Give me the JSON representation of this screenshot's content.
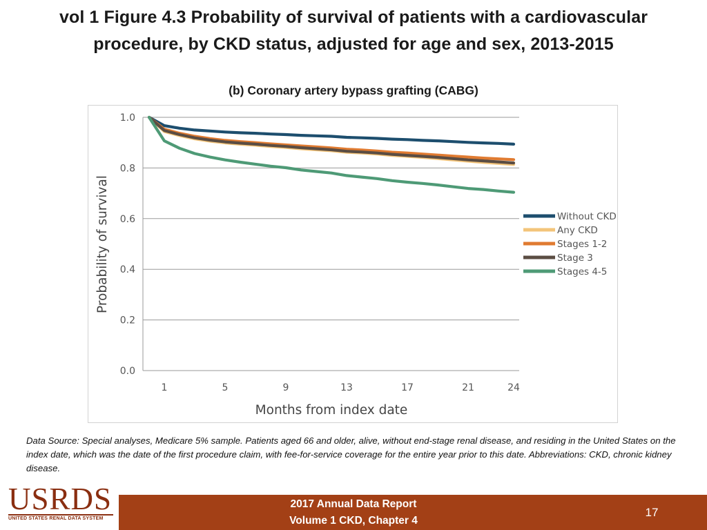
{
  "slide": {
    "title_line1": "vol 1 Figure 4.3 Probability of survival of patients with a cardiovascular",
    "title_line2": "procedure, by CKD status, adjusted for age and sex, 2013-2015",
    "footnote": "Data Source: Special analyses, Medicare 5% sample. Patients aged 66 and older, alive, without end-stage renal disease, and residing in the United States on the index date, which was the date of the first procedure claim, with fee-for-service coverage for the entire year prior to this date. Abbreviations: CKD, chronic kidney disease."
  },
  "footer": {
    "logo_text": "USRDS",
    "logo_tagline": "UNITED STATES RENAL DATA SYSTEM",
    "report_line1": "2017 Annual Data Report",
    "report_line2": "Volume 1 CKD, Chapter 4",
    "page_number": "17",
    "bar_color": "#a34016"
  },
  "chart_data": {
    "type": "line",
    "title": "(b) Coronary artery bypass grafting (CABG)",
    "xlabel": "Months from index date",
    "ylabel": "Probability of survival",
    "xlim": [
      0,
      24
    ],
    "ylim": [
      0,
      1
    ],
    "x_ticks": [
      1,
      5,
      9,
      13,
      17,
      21,
      24
    ],
    "y_ticks": [
      0,
      0.2,
      0.4,
      0.6,
      0.8,
      1.0
    ],
    "y_tick_labels": [
      "0.0",
      "0.2",
      "0.4",
      "0.6",
      "0.8",
      "1.0"
    ],
    "grid": "horizontal",
    "legend_position": "right",
    "x": [
      0,
      1,
      2,
      3,
      4,
      5,
      6,
      7,
      8,
      9,
      10,
      11,
      12,
      13,
      14,
      15,
      16,
      17,
      18,
      19,
      20,
      21,
      22,
      23,
      24
    ],
    "series": [
      {
        "name": "Without CKD",
        "color": "#1d4e6e",
        "values": [
          1.0,
          0.967,
          0.957,
          0.95,
          0.946,
          0.942,
          0.939,
          0.937,
          0.934,
          0.932,
          0.929,
          0.927,
          0.925,
          0.921,
          0.919,
          0.917,
          0.914,
          0.912,
          0.909,
          0.907,
          0.904,
          0.901,
          0.899,
          0.897,
          0.894
        ]
      },
      {
        "name": "Any CKD",
        "color": "#f3c47a",
        "values": [
          1.0,
          0.944,
          0.928,
          0.915,
          0.906,
          0.899,
          0.894,
          0.89,
          0.885,
          0.881,
          0.876,
          0.872,
          0.868,
          0.862,
          0.859,
          0.855,
          0.85,
          0.846,
          0.842,
          0.837,
          0.832,
          0.827,
          0.822,
          0.818,
          0.814
        ]
      },
      {
        "name": "Stages 1-2",
        "color": "#e07b31",
        "values": [
          1.0,
          0.953,
          0.937,
          0.925,
          0.916,
          0.909,
          0.904,
          0.9,
          0.895,
          0.891,
          0.887,
          0.883,
          0.879,
          0.874,
          0.871,
          0.867,
          0.862,
          0.859,
          0.855,
          0.851,
          0.847,
          0.843,
          0.839,
          0.836,
          0.833
        ]
      },
      {
        "name": "Stage 3",
        "color": "#5b4d43",
        "values": [
          1.0,
          0.948,
          0.932,
          0.919,
          0.91,
          0.903,
          0.898,
          0.894,
          0.889,
          0.885,
          0.88,
          0.876,
          0.872,
          0.866,
          0.863,
          0.859,
          0.854,
          0.85,
          0.846,
          0.842,
          0.837,
          0.832,
          0.828,
          0.824,
          0.82
        ]
      },
      {
        "name": "Stages 4-5",
        "color": "#4e9a76",
        "values": [
          1.0,
          0.907,
          0.878,
          0.857,
          0.843,
          0.832,
          0.823,
          0.815,
          0.807,
          0.801,
          0.792,
          0.786,
          0.78,
          0.77,
          0.764,
          0.758,
          0.75,
          0.744,
          0.739,
          0.733,
          0.726,
          0.719,
          0.715,
          0.709,
          0.704
        ]
      }
    ]
  }
}
